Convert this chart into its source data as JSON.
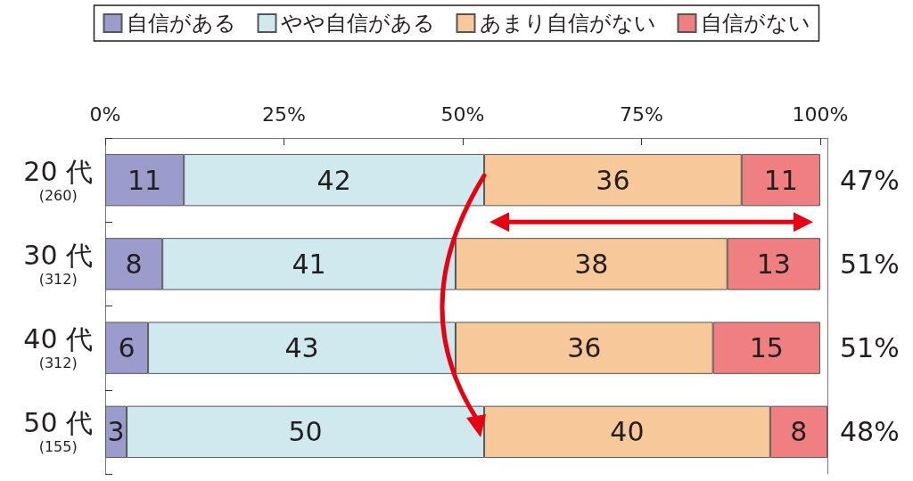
{
  "chart_data": {
    "type": "bar",
    "orientation": "horizontal",
    "stacked": true,
    "data_labels": true,
    "legend": "top",
    "grid": false,
    "categories": [
      "20 代\n(260)",
      "30 代\n(312)",
      "40 代\n(312)",
      "50 代\n(155)"
    ],
    "series": [
      {
        "name": "自信がある",
        "color": "#9b9bcc",
        "values": [
          11,
          8,
          6,
          3
        ]
      },
      {
        "name": "やや自信がある",
        "color": "#cfe9ee",
        "values": [
          42,
          41,
          43,
          50
        ]
      },
      {
        "name": "あまり自信がない",
        "color": "#f7c99a",
        "values": [
          36,
          38,
          36,
          40
        ]
      },
      {
        "name": "自信がない",
        "color": "#ef7f80",
        "values": [
          11,
          13,
          15,
          8
        ]
      }
    ],
    "annotations": [
      "47%",
      "51%",
      "51%",
      "48%"
    ],
    "xlim": [
      0,
      101
    ],
    "xticks": [
      {
        "value": 0,
        "label": "0%"
      },
      {
        "value": 25,
        "label": "25%"
      },
      {
        "value": 50,
        "label": "50%"
      },
      {
        "value": 75,
        "label": "75%"
      },
      {
        "value": 100,
        "label": "100%"
      }
    ]
  }
}
